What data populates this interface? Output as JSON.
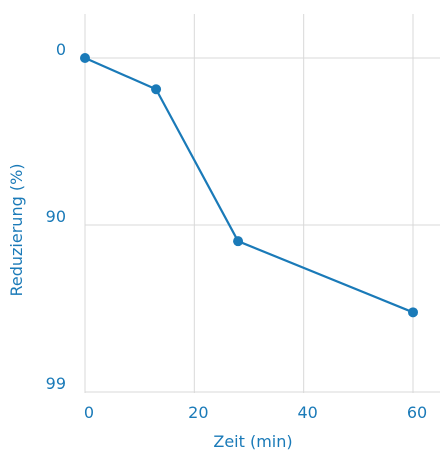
{
  "chart_data": {
    "type": "line",
    "title": "",
    "xlabel": "Zeit (min)",
    "ylabel": "Reduzierung (%)",
    "x_ticks": [
      "0",
      "20",
      "40",
      "60"
    ],
    "y_ticks": [
      "0",
      "90",
      "99"
    ],
    "x": [
      0,
      13,
      28,
      60
    ],
    "y": [
      0,
      35,
      92,
      97
    ],
    "xlim": [
      0,
      60
    ],
    "y_scale": "log-reduction",
    "grid": true,
    "colors": {
      "series": "#1a7ab8",
      "grid": "#d9d9d9",
      "text": "#1a7ab8"
    }
  }
}
